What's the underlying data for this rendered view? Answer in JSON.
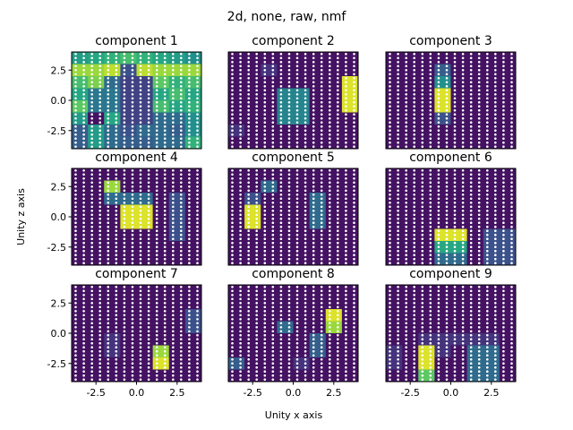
{
  "chart_data": {
    "type": "heatmap",
    "suptitle": "2d, none, raw, nmf",
    "xlabel": "Unity x axis",
    "ylabel": "Unity z axis",
    "colormap": "viridis",
    "xlim": [
      -4,
      4
    ],
    "ylim": [
      -4,
      4
    ],
    "xticks": [
      "-2.5",
      "0.0",
      "2.5"
    ],
    "yticks": [
      "2.5",
      "0.0",
      "-2.5"
    ],
    "grid_x": [
      -3.5,
      -2.5,
      -1.5,
      -0.5,
      0.5,
      1.5,
      2.5,
      3.5
    ],
    "grid_z": [
      3.5,
      2.5,
      1.5,
      0.5,
      -0.5,
      -1.5,
      -2.5,
      -3.5
    ],
    "panels": [
      {
        "title": "component 1",
        "values": [
          [
            0.55,
            0.6,
            0.65,
            0.7,
            0.65,
            0.6,
            0.55,
            0.5
          ],
          [
            0.85,
            0.85,
            0.9,
            0.25,
            0.9,
            0.85,
            0.85,
            0.85
          ],
          [
            0.7,
            0.8,
            0.35,
            0.2,
            0.2,
            0.75,
            0.65,
            0.7
          ],
          [
            0.6,
            0.4,
            0.4,
            0.2,
            0.2,
            0.6,
            0.7,
            0.6
          ],
          [
            0.75,
            0.4,
            0.4,
            0.2,
            0.2,
            0.7,
            0.6,
            0.65
          ],
          [
            0.55,
            0.05,
            0.6,
            0.2,
            0.2,
            0.35,
            0.35,
            0.5
          ],
          [
            0.3,
            0.55,
            0.35,
            0.25,
            0.35,
            0.35,
            0.3,
            0.5
          ],
          [
            0.3,
            0.55,
            0.35,
            0.3,
            0.3,
            0.35,
            0.35,
            0.65
          ]
        ]
      },
      {
        "title": "component 2",
        "values": [
          [
            0.05,
            0.05,
            0.05,
            0.05,
            0.05,
            0.05,
            0.05,
            0.05
          ],
          [
            0.05,
            0.05,
            0.15,
            0.05,
            0.05,
            0.05,
            0.05,
            0.05
          ],
          [
            0.05,
            0.05,
            0.05,
            0.05,
            0.05,
            0.05,
            0.05,
            0.95
          ],
          [
            0.05,
            0.05,
            0.05,
            0.45,
            0.45,
            0.05,
            0.05,
            0.95
          ],
          [
            0.05,
            0.05,
            0.05,
            0.45,
            0.45,
            0.05,
            0.05,
            0.95
          ],
          [
            0.05,
            0.05,
            0.05,
            0.45,
            0.45,
            0.05,
            0.05,
            0.05
          ],
          [
            0.15,
            0.05,
            0.05,
            0.05,
            0.05,
            0.05,
            0.05,
            0.05
          ],
          [
            0.05,
            0.05,
            0.05,
            0.05,
            0.05,
            0.05,
            0.05,
            0.05
          ]
        ]
      },
      {
        "title": "component 3",
        "values": [
          [
            0.05,
            0.05,
            0.05,
            0.05,
            0.05,
            0.05,
            0.05,
            0.05
          ],
          [
            0.05,
            0.05,
            0.05,
            0.3,
            0.05,
            0.05,
            0.05,
            0.05
          ],
          [
            0.05,
            0.05,
            0.05,
            0.5,
            0.05,
            0.05,
            0.05,
            0.05
          ],
          [
            0.05,
            0.05,
            0.05,
            0.95,
            0.05,
            0.05,
            0.05,
            0.05
          ],
          [
            0.05,
            0.05,
            0.05,
            0.95,
            0.05,
            0.05,
            0.05,
            0.05
          ],
          [
            0.05,
            0.05,
            0.05,
            0.25,
            0.05,
            0.05,
            0.05,
            0.05
          ],
          [
            0.05,
            0.05,
            0.05,
            0.05,
            0.05,
            0.05,
            0.05,
            0.05
          ],
          [
            0.05,
            0.05,
            0.05,
            0.05,
            0.05,
            0.05,
            0.05,
            0.05
          ]
        ]
      },
      {
        "title": "component 4",
        "values": [
          [
            0.05,
            0.05,
            0.05,
            0.05,
            0.05,
            0.05,
            0.05,
            0.05
          ],
          [
            0.05,
            0.05,
            0.85,
            0.05,
            0.05,
            0.05,
            0.05,
            0.05
          ],
          [
            0.05,
            0.05,
            0.35,
            0.35,
            0.35,
            0.05,
            0.25,
            0.05
          ],
          [
            0.05,
            0.05,
            0.05,
            0.95,
            0.95,
            0.05,
            0.25,
            0.05
          ],
          [
            0.05,
            0.05,
            0.05,
            0.95,
            0.95,
            0.05,
            0.25,
            0.05
          ],
          [
            0.05,
            0.05,
            0.05,
            0.05,
            0.05,
            0.05,
            0.25,
            0.05
          ],
          [
            0.05,
            0.05,
            0.05,
            0.05,
            0.05,
            0.05,
            0.05,
            0.05
          ],
          [
            0.05,
            0.05,
            0.05,
            0.05,
            0.05,
            0.05,
            0.05,
            0.05
          ]
        ]
      },
      {
        "title": "component 5",
        "values": [
          [
            0.05,
            0.05,
            0.05,
            0.05,
            0.05,
            0.05,
            0.05,
            0.05
          ],
          [
            0.05,
            0.05,
            0.35,
            0.05,
            0.05,
            0.05,
            0.05,
            0.05
          ],
          [
            0.05,
            0.25,
            0.05,
            0.05,
            0.05,
            0.35,
            0.05,
            0.05
          ],
          [
            0.05,
            0.95,
            0.05,
            0.05,
            0.05,
            0.35,
            0.05,
            0.05
          ],
          [
            0.05,
            0.95,
            0.05,
            0.05,
            0.05,
            0.35,
            0.05,
            0.05
          ],
          [
            0.05,
            0.05,
            0.05,
            0.05,
            0.05,
            0.05,
            0.05,
            0.05
          ],
          [
            0.05,
            0.05,
            0.05,
            0.05,
            0.05,
            0.05,
            0.05,
            0.05
          ],
          [
            0.05,
            0.05,
            0.05,
            0.05,
            0.05,
            0.05,
            0.05,
            0.05
          ]
        ]
      },
      {
        "title": "component 6",
        "values": [
          [
            0.05,
            0.05,
            0.05,
            0.05,
            0.05,
            0.05,
            0.05,
            0.05
          ],
          [
            0.05,
            0.05,
            0.05,
            0.05,
            0.05,
            0.05,
            0.05,
            0.05
          ],
          [
            0.05,
            0.05,
            0.05,
            0.05,
            0.05,
            0.05,
            0.05,
            0.05
          ],
          [
            0.05,
            0.05,
            0.05,
            0.05,
            0.05,
            0.05,
            0.05,
            0.05
          ],
          [
            0.05,
            0.05,
            0.05,
            0.05,
            0.05,
            0.05,
            0.05,
            0.05
          ],
          [
            0.05,
            0.05,
            0.05,
            0.95,
            0.95,
            0.05,
            0.25,
            0.25
          ],
          [
            0.05,
            0.05,
            0.05,
            0.6,
            0.6,
            0.05,
            0.25,
            0.25
          ],
          [
            0.05,
            0.05,
            0.05,
            0.35,
            0.35,
            0.05,
            0.25,
            0.25
          ]
        ]
      },
      {
        "title": "component 7",
        "values": [
          [
            0.05,
            0.05,
            0.05,
            0.05,
            0.05,
            0.05,
            0.05,
            0.05
          ],
          [
            0.05,
            0.05,
            0.05,
            0.05,
            0.05,
            0.05,
            0.05,
            0.05
          ],
          [
            0.05,
            0.05,
            0.05,
            0.05,
            0.05,
            0.05,
            0.05,
            0.25
          ],
          [
            0.05,
            0.05,
            0.05,
            0.05,
            0.05,
            0.05,
            0.05,
            0.25
          ],
          [
            0.05,
            0.05,
            0.15,
            0.05,
            0.05,
            0.05,
            0.05,
            0.05
          ],
          [
            0.05,
            0.05,
            0.15,
            0.05,
            0.05,
            0.85,
            0.05,
            0.05
          ],
          [
            0.05,
            0.05,
            0.05,
            0.05,
            0.05,
            0.95,
            0.05,
            0.05
          ],
          [
            0.05,
            0.05,
            0.05,
            0.05,
            0.05,
            0.05,
            0.05,
            0.05
          ]
        ]
      },
      {
        "title": "component 8",
        "values": [
          [
            0.05,
            0.05,
            0.05,
            0.05,
            0.05,
            0.05,
            0.05,
            0.05
          ],
          [
            0.05,
            0.05,
            0.05,
            0.05,
            0.05,
            0.05,
            0.05,
            0.05
          ],
          [
            0.05,
            0.05,
            0.05,
            0.05,
            0.05,
            0.05,
            0.95,
            0.05
          ],
          [
            0.05,
            0.05,
            0.05,
            0.35,
            0.05,
            0.05,
            0.85,
            0.05
          ],
          [
            0.05,
            0.05,
            0.05,
            0.05,
            0.05,
            0.3,
            0.05,
            0.05
          ],
          [
            0.05,
            0.05,
            0.05,
            0.05,
            0.05,
            0.3,
            0.05,
            0.05
          ],
          [
            0.3,
            0.05,
            0.05,
            0.05,
            0.15,
            0.05,
            0.05,
            0.05
          ],
          [
            0.05,
            0.05,
            0.05,
            0.05,
            0.05,
            0.05,
            0.05,
            0.05
          ]
        ]
      },
      {
        "title": "component 9",
        "values": [
          [
            0.05,
            0.05,
            0.05,
            0.05,
            0.05,
            0.05,
            0.05,
            0.05
          ],
          [
            0.05,
            0.05,
            0.05,
            0.05,
            0.05,
            0.05,
            0.05,
            0.05
          ],
          [
            0.05,
            0.05,
            0.05,
            0.05,
            0.05,
            0.05,
            0.05,
            0.05
          ],
          [
            0.05,
            0.05,
            0.05,
            0.05,
            0.05,
            0.05,
            0.05,
            0.05
          ],
          [
            0.05,
            0.05,
            0.15,
            0.15,
            0.15,
            0.15,
            0.15,
            0.05
          ],
          [
            0.15,
            0.05,
            0.95,
            0.15,
            0.05,
            0.35,
            0.35,
            0.05
          ],
          [
            0.15,
            0.05,
            0.95,
            0.05,
            0.05,
            0.35,
            0.35,
            0.05
          ],
          [
            0.05,
            0.05,
            0.75,
            0.05,
            0.05,
            0.35,
            0.35,
            0.05
          ]
        ]
      }
    ]
  }
}
